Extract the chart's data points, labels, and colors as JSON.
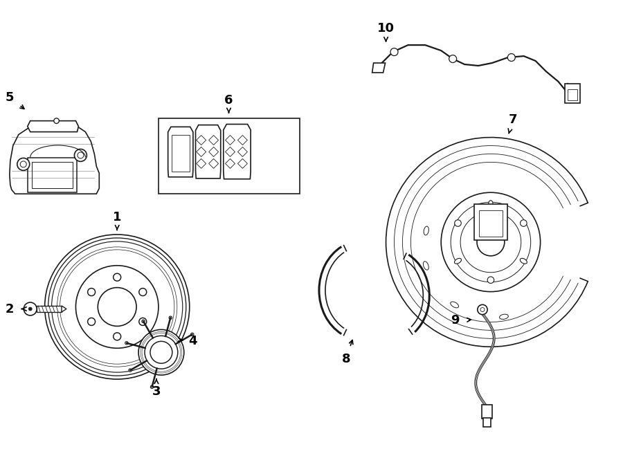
{
  "bg_color": "#ffffff",
  "line_color": "#1a1a1a",
  "line_width": 1.2,
  "label_fontsize": 13,
  "fig_width": 9.0,
  "fig_height": 6.62
}
